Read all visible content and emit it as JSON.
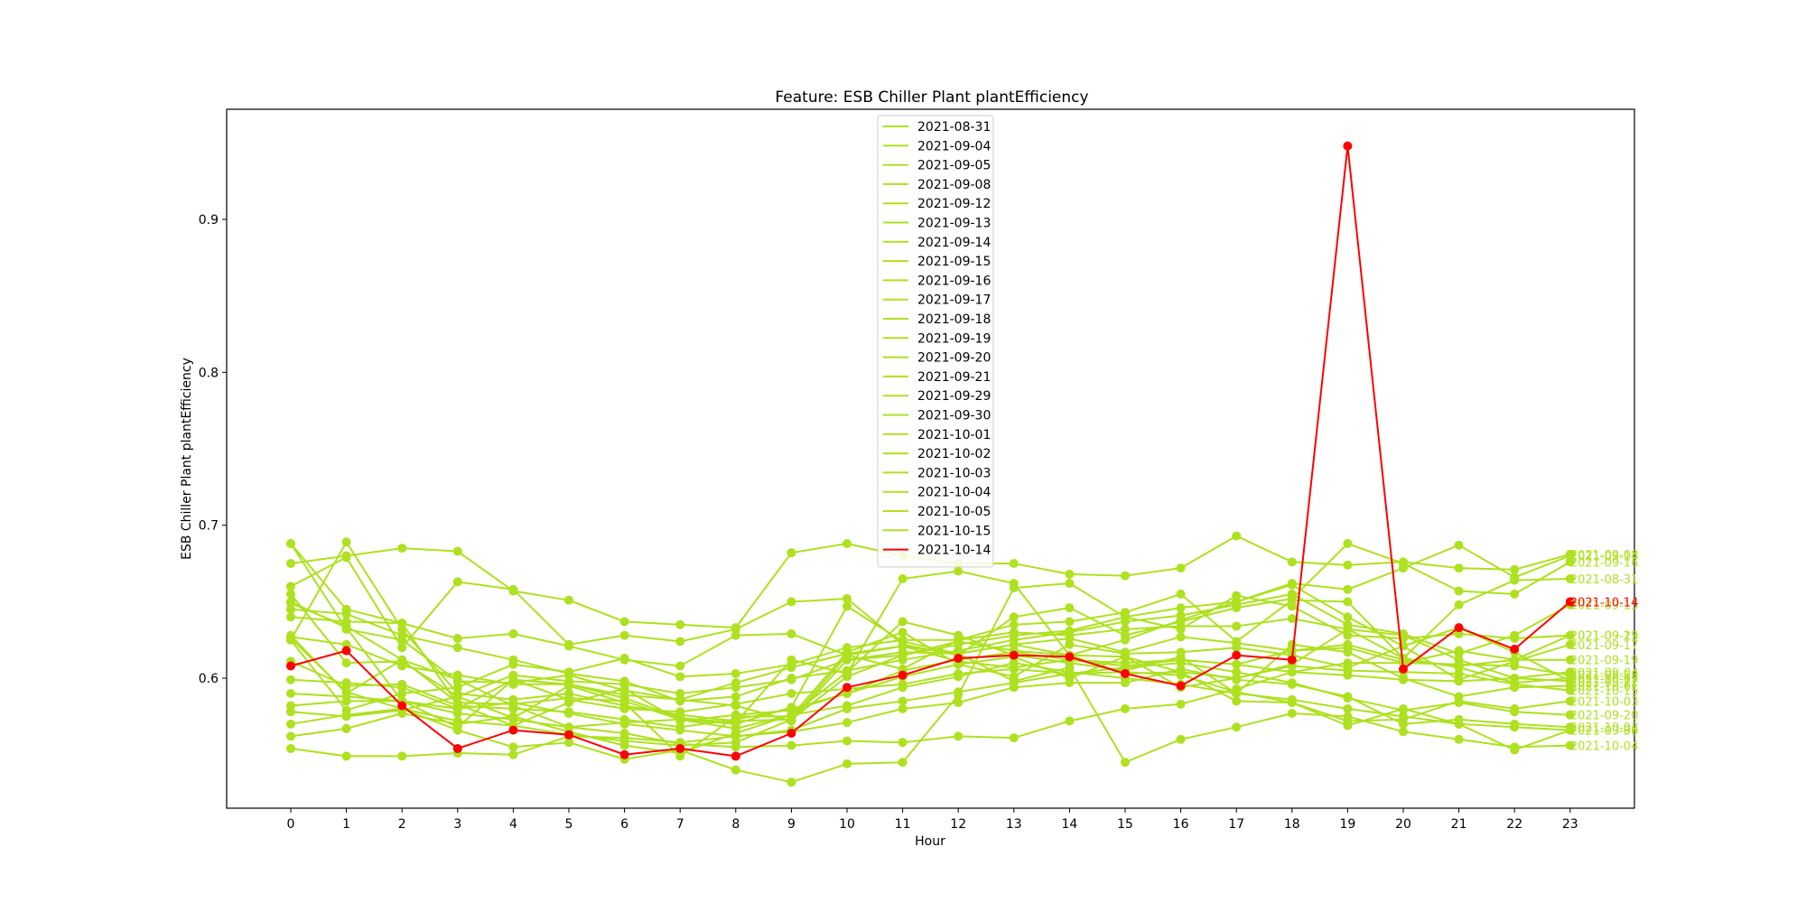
{
  "chart_data": {
    "type": "line",
    "title": "Feature: ESB Chiller Plant plantEfficiency",
    "xlabel": "Hour",
    "ylabel": "ESB Chiller Plant plantEfficiency",
    "x": [
      0,
      1,
      2,
      3,
      4,
      5,
      6,
      7,
      8,
      9,
      10,
      11,
      12,
      13,
      14,
      15,
      16,
      17,
      18,
      19,
      20,
      21,
      22,
      23
    ],
    "ylim": [
      0.515,
      0.972
    ],
    "yticks": [
      0.6,
      0.7,
      0.8,
      0.9
    ],
    "ytick_labels": [
      "0.6",
      "0.7",
      "0.8",
      "0.9"
    ],
    "grid": false,
    "legend_position": "top-center",
    "markers": true,
    "colors": {
      "normal": "#aee11f",
      "highlight": "#ff0000"
    },
    "series": [
      {
        "name": "2021-08-31",
        "highlight": false,
        "values": [
          0.688,
          0.645,
          0.636,
          0.626,
          0.629,
          0.621,
          0.612,
          0.608,
          0.628,
          0.629,
          0.615,
          0.606,
          0.625,
          0.635,
          0.637,
          0.643,
          0.655,
          0.624,
          0.651,
          0.65,
          0.613,
          0.648,
          0.664,
          0.665
        ]
      },
      {
        "name": "2021-09-04",
        "highlight": false,
        "values": [
          0.611,
          0.595,
          0.596,
          0.582,
          0.58,
          0.578,
          0.573,
          0.568,
          0.573,
          0.58,
          0.59,
          0.605,
          0.612,
          0.617,
          0.612,
          0.61,
          0.612,
          0.609,
          0.604,
          0.602,
          0.599,
          0.598,
          0.6,
          0.604
        ]
      },
      {
        "name": "2021-09-05",
        "highlight": false,
        "values": [
          0.562,
          0.567,
          0.577,
          0.57,
          0.575,
          0.565,
          0.556,
          0.551,
          0.564,
          0.576,
          0.582,
          0.594,
          0.601,
          0.61,
          0.604,
          0.6,
          0.596,
          0.59,
          0.586,
          0.58,
          0.575,
          0.57,
          0.568,
          0.566
        ]
      },
      {
        "name": "2021-09-08",
        "highlight": false,
        "values": [
          0.675,
          0.68,
          0.685,
          0.683,
          0.657,
          0.651,
          0.637,
          0.635,
          0.633,
          0.682,
          0.688,
          0.68,
          0.675,
          0.675,
          0.668,
          0.667,
          0.672,
          0.693,
          0.676,
          0.674,
          0.676,
          0.672,
          0.671,
          0.681
        ]
      },
      {
        "name": "2021-09-12",
        "highlight": false,
        "values": [
          0.625,
          0.579,
          0.59,
          0.594,
          0.609,
          0.604,
          0.613,
          0.601,
          0.603,
          0.609,
          0.62,
          0.625,
          0.625,
          0.63,
          0.628,
          0.632,
          0.634,
          0.634,
          0.639,
          0.632,
          0.628,
          0.612,
          0.6,
          0.598
        ]
      },
      {
        "name": "2021-09-13",
        "highlight": false,
        "values": [
          0.655,
          0.61,
          0.611,
          0.588,
          0.602,
          0.598,
          0.596,
          0.59,
          0.594,
          0.599,
          0.612,
          0.617,
          0.616,
          0.622,
          0.626,
          0.617,
          0.627,
          0.623,
          0.618,
          0.622,
          0.612,
          0.608,
          0.612,
          0.628
        ]
      },
      {
        "name": "2021-09-14",
        "highlight": false,
        "values": [
          0.688,
          0.632,
          0.625,
          0.598,
          0.597,
          0.602,
          0.592,
          0.586,
          0.582,
          0.572,
          0.612,
          0.615,
          0.622,
          0.628,
          0.631,
          0.64,
          0.646,
          0.65,
          0.662,
          0.658,
          0.672,
          0.687,
          0.666,
          0.68
        ]
      },
      {
        "name": "2021-09-15",
        "highlight": false,
        "values": [
          0.645,
          0.642,
          0.628,
          0.62,
          0.612,
          0.603,
          0.598,
          0.585,
          0.588,
          0.6,
          0.605,
          0.612,
          0.618,
          0.625,
          0.63,
          0.637,
          0.641,
          0.648,
          0.655,
          0.635,
          0.629,
          0.616,
          0.628,
          0.648
        ]
      },
      {
        "name": "2021-09-16",
        "highlight": false,
        "values": [
          0.66,
          0.679,
          0.62,
          0.663,
          0.658,
          0.622,
          0.628,
          0.624,
          0.632,
          0.65,
          0.652,
          0.622,
          0.615,
          0.64,
          0.646,
          0.628,
          0.637,
          0.646,
          0.652,
          0.688,
          0.675,
          0.657,
          0.655,
          0.676
        ]
      },
      {
        "name": "2021-09-17",
        "highlight": false,
        "values": [
          0.625,
          0.689,
          0.632,
          0.59,
          0.586,
          0.59,
          0.582,
          0.576,
          0.572,
          0.573,
          0.601,
          0.615,
          0.624,
          0.618,
          0.615,
          0.625,
          0.638,
          0.65,
          0.661,
          0.64,
          0.621,
          0.599,
          0.611,
          0.622
        ]
      },
      {
        "name": "2021-09-18",
        "highlight": false,
        "values": [
          0.582,
          0.585,
          0.585,
          0.577,
          0.573,
          0.568,
          0.564,
          0.557,
          0.555,
          0.556,
          0.559,
          0.558,
          0.562,
          0.561,
          0.572,
          0.58,
          0.583,
          0.593,
          0.604,
          0.61,
          0.61,
          0.609,
          0.608,
          0.602
        ]
      },
      {
        "name": "2021-09-19",
        "highlight": false,
        "values": [
          0.627,
          0.622,
          0.608,
          0.602,
          0.596,
          0.596,
          0.589,
          0.586,
          0.597,
          0.607,
          0.616,
          0.621,
          0.611,
          0.607,
          0.612,
          0.608,
          0.612,
          0.609,
          0.618,
          0.62,
          0.61,
          0.618,
          0.612,
          0.612
        ]
      },
      {
        "name": "2021-09-20",
        "highlight": false,
        "values": [
          0.59,
          0.588,
          0.585,
          0.58,
          0.584,
          0.577,
          0.57,
          0.566,
          0.562,
          0.566,
          0.58,
          0.585,
          0.591,
          0.597,
          0.603,
          0.607,
          0.61,
          0.604,
          0.597,
          0.587,
          0.579,
          0.584,
          0.578,
          0.576
        ]
      },
      {
        "name": "2021-09-21",
        "highlight": false,
        "values": [
          0.64,
          0.637,
          0.636,
          0.583,
          0.569,
          0.584,
          0.593,
          0.572,
          0.576,
          0.579,
          0.59,
          0.601,
          0.609,
          0.601,
          0.622,
          0.616,
          0.617,
          0.62,
          0.615,
          0.607,
          0.621,
          0.633,
          0.617,
          0.598
        ]
      },
      {
        "name": "2021-09-29",
        "highlight": false,
        "values": [
          0.626,
          0.591,
          0.58,
          0.566,
          0.555,
          0.558,
          0.547,
          0.553,
          0.54,
          0.532,
          0.544,
          0.545,
          0.589,
          0.659,
          0.662,
          0.64,
          0.632,
          0.654,
          0.647,
          0.628,
          0.626,
          0.629,
          0.626,
          0.628
        ]
      },
      {
        "name": "2021-09-30",
        "highlight": false,
        "values": [
          0.649,
          0.634,
          0.612,
          0.599,
          0.582,
          0.568,
          0.571,
          0.573,
          0.57,
          0.581,
          0.647,
          0.624,
          0.616,
          0.622,
          0.615,
          0.603,
          0.604,
          0.585,
          0.584,
          0.569,
          0.58,
          0.57,
          0.553,
          0.566
        ]
      },
      {
        "name": "2021-10-01",
        "highlight": false,
        "values": [
          0.628,
          0.59,
          0.612,
          0.584,
          0.583,
          0.587,
          0.585,
          0.573,
          0.567,
          0.576,
          0.604,
          0.637,
          0.628,
          0.615,
          0.61,
          0.605,
          0.614,
          0.59,
          0.622,
          0.617,
          0.6,
          0.588,
          0.594,
          0.595
        ]
      },
      {
        "name": "2021-10-02",
        "highlight": false,
        "values": [
          0.554,
          0.549,
          0.549,
          0.551,
          0.55,
          0.562,
          0.561,
          0.558,
          0.562,
          0.565,
          0.571,
          0.58,
          0.584,
          0.594,
          0.597,
          0.597,
          0.606,
          0.599,
          0.596,
          0.588,
          0.57,
          0.573,
          0.57,
          0.568
        ]
      },
      {
        "name": "2021-10-03",
        "highlight": false,
        "values": [
          0.599,
          0.597,
          0.594,
          0.58,
          0.599,
          0.586,
          0.58,
          0.578,
          0.583,
          0.59,
          0.593,
          0.596,
          0.603,
          0.606,
          0.603,
          0.604,
          0.602,
          0.591,
          0.584,
          0.572,
          0.573,
          0.585,
          0.58,
          0.585
        ]
      },
      {
        "name": "2021-10-04",
        "highlight": false,
        "values": [
          0.57,
          0.576,
          0.58,
          0.572,
          0.569,
          0.563,
          0.559,
          0.556,
          0.558,
          0.573,
          0.615,
          0.621,
          0.616,
          0.598,
          0.607,
          0.545,
          0.56,
          0.568,
          0.577,
          0.575,
          0.565,
          0.56,
          0.555,
          0.556
        ]
      },
      {
        "name": "2021-10-05",
        "highlight": false,
        "values": [
          0.578,
          0.575,
          0.579,
          0.588,
          0.574,
          0.595,
          0.584,
          0.549,
          0.575,
          0.575,
          0.617,
          0.63,
          0.609,
          0.614,
          0.6,
          0.614,
          0.594,
          0.6,
          0.609,
          0.632,
          0.613,
          0.607,
          0.597,
          0.6
        ]
      },
      {
        "name": "2021-10-15",
        "highlight": false,
        "values": [
          0.65,
          0.633,
          0.585,
          0.568,
          0.599,
          0.596,
          0.587,
          0.574,
          0.571,
          0.612,
          0.603,
          0.665,
          0.67,
          0.662,
          0.615,
          0.614,
          0.604,
          0.6,
          0.608,
          0.605,
          0.604,
          0.603,
          0.596,
          0.592
        ]
      },
      {
        "name": "2021-10-14",
        "highlight": true,
        "values": [
          0.608,
          0.618,
          0.582,
          0.554,
          0.566,
          0.563,
          0.55,
          0.554,
          0.549,
          0.564,
          0.594,
          0.602,
          0.613,
          0.615,
          0.614,
          0.603,
          0.595,
          0.615,
          0.612,
          0.948,
          0.606,
          0.633,
          0.619,
          0.65
        ]
      }
    ],
    "end_labels": [
      {
        "text": "2021-09-14",
        "series": "2021-09-14"
      },
      {
        "text": "2021-09-08",
        "series": "2021-09-08"
      },
      {
        "text": "2021-09-16",
        "series": "2021-09-16"
      },
      {
        "text": "2021-08-31",
        "series": "2021-08-31"
      },
      {
        "text": "2021-09-15",
        "series": "2021-09-15"
      },
      {
        "text": "2021-10-14",
        "series": "2021-10-14"
      },
      {
        "text": "2021-09-29",
        "series": "2021-09-29"
      },
      {
        "text": "2021-09-13",
        "series": "2021-09-13"
      },
      {
        "text": "2021-09-17",
        "series": "2021-09-17"
      },
      {
        "text": "2021-09-19",
        "series": "2021-09-19"
      },
      {
        "text": "2021-09-04",
        "series": "2021-09-04"
      },
      {
        "text": "2021-10-05",
        "series": "2021-10-05"
      },
      {
        "text": "2021-09-18",
        "series": "2021-09-18"
      },
      {
        "text": "2021-09-12",
        "series": "2021-09-12"
      },
      {
        "text": "2021-09-21",
        "series": "2021-09-21"
      },
      {
        "text": "2021-10-15",
        "series": "2021-10-15"
      },
      {
        "text": "2021-10-03",
        "series": "2021-10-03"
      },
      {
        "text": "2021-09-20",
        "series": "2021-09-20"
      },
      {
        "text": "2021-10-02",
        "series": "2021-10-02"
      },
      {
        "text": "2021-09-05",
        "series": "2021-09-05"
      },
      {
        "text": "2021-09-30",
        "series": "2021-09-30"
      },
      {
        "text": "2021-10-01",
        "series": "2021-10-01"
      },
      {
        "text": "2021-10-04",
        "series": "2021-10-04"
      }
    ]
  }
}
